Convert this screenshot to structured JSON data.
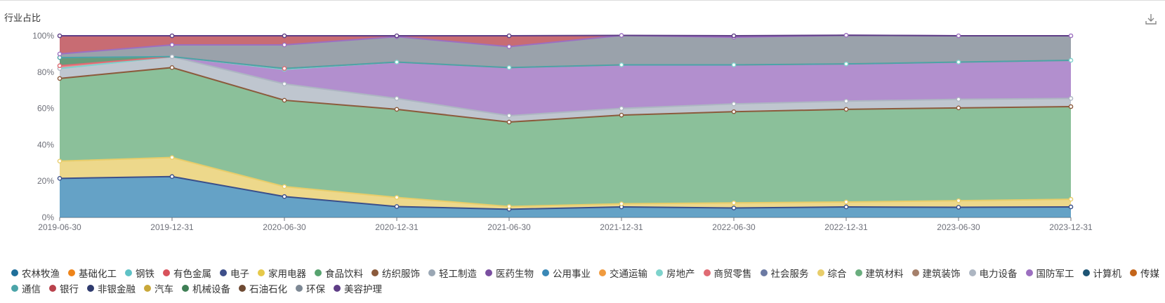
{
  "title": "行业占比",
  "toolbar": {
    "download_icon": "download-icon"
  },
  "chart_data": {
    "type": "area",
    "stacked": true,
    "normalized_percent": true,
    "x": [
      "2019-06-30",
      "2019-12-31",
      "2020-06-30",
      "2020-12-31",
      "2021-06-30",
      "2021-12-31",
      "2022-06-30",
      "2022-12-31",
      "2023-06-30",
      "2023-12-31"
    ],
    "y_ticks": [
      "0%",
      "20%",
      "40%",
      "60%",
      "80%",
      "100%"
    ],
    "ylim": [
      0,
      100
    ],
    "grid": false,
    "legend_position": "bottom",
    "series": [
      {
        "name": "农林牧渔",
        "color": "#1f6f9a",
        "values": [
          0,
          0,
          0,
          0,
          0,
          0,
          0,
          0,
          0,
          0
        ]
      },
      {
        "name": "基础化工",
        "color": "#ee8419",
        "values": [
          0,
          0,
          0,
          0,
          0,
          0,
          0,
          0,
          0,
          0
        ]
      },
      {
        "name": "钢铁",
        "color": "#5fc2c6",
        "values": [
          0,
          0,
          0,
          0,
          0,
          0,
          0,
          0,
          0,
          0
        ]
      },
      {
        "name": "有色金属",
        "color": "#d8525b",
        "values": [
          0,
          0,
          0,
          0,
          0,
          0,
          0,
          0,
          0,
          0
        ]
      },
      {
        "name": "电子",
        "color": "#3e4f8a",
        "values": [
          0,
          0,
          0,
          0,
          0,
          0,
          0,
          0,
          0,
          0
        ]
      },
      {
        "name": "家用电器",
        "color": "#e6c94a",
        "values": [
          0,
          0,
          0,
          0,
          0,
          0,
          0,
          0,
          0,
          0
        ]
      },
      {
        "name": "食品饮料",
        "color": "#57a36f",
        "values": [
          0,
          0,
          0,
          0,
          0,
          0,
          0,
          0,
          0,
          0
        ]
      },
      {
        "name": "纺织服饰",
        "color": "#8b5a3c",
        "values": [
          0,
          0,
          0,
          0,
          0,
          0,
          0,
          0,
          0,
          0
        ]
      },
      {
        "name": "轻工制造",
        "color": "#9aa7b4",
        "values": [
          0,
          0,
          0,
          0,
          0,
          0,
          0,
          0,
          0,
          0
        ]
      },
      {
        "name": "医药生物",
        "color": "#7a4fa0",
        "values": [
          0,
          0,
          0,
          0,
          0,
          0,
          0,
          0,
          0,
          0
        ]
      },
      {
        "name": "公用事业",
        "color": "#3a88b6",
        "values": [
          21.5,
          22.5,
          11.5,
          6,
          4.5,
          5.8,
          5.2,
          5.8,
          5.6,
          5.8
        ]
      },
      {
        "name": "交通运输",
        "color": "#f09b3f",
        "values": [
          0,
          0,
          0,
          0,
          0,
          0,
          0,
          0,
          0,
          0
        ]
      },
      {
        "name": "房地产",
        "color": "#7ed3cc",
        "values": [
          0,
          0,
          0,
          0,
          0,
          0,
          0,
          0,
          0,
          0
        ]
      },
      {
        "name": "商贸零售",
        "color": "#e06b73",
        "values": [
          0,
          0,
          0,
          0,
          0,
          0,
          0,
          0,
          0,
          0
        ]
      },
      {
        "name": "社会服务",
        "color": "#6b7aa3",
        "values": [
          0,
          0,
          0,
          0,
          0,
          0,
          0,
          0,
          0,
          0
        ]
      },
      {
        "name": "综合",
        "color": "#e8cd6a",
        "values": [
          9.5,
          10.5,
          5.5,
          5,
          1.5,
          1.7,
          2.8,
          2.7,
          3.6,
          4.2
        ]
      },
      {
        "name": "建筑材料",
        "color": "#6aae7e",
        "values": [
          45.5,
          49.5,
          47.5,
          48.5,
          46.5,
          48.8,
          50.2,
          51,
          51.1,
          51
        ]
      },
      {
        "name": "建筑装饰",
        "color": "#a5806b",
        "values": [
          0,
          0,
          0,
          0,
          0,
          0,
          0,
          0,
          0,
          0
        ]
      },
      {
        "name": "电力设备",
        "color": "#adb6c2",
        "values": [
          5.5,
          6,
          9,
          6,
          3.5,
          3.7,
          4.3,
          4.5,
          4.7,
          4.5
        ]
      },
      {
        "name": "国防军工",
        "color": "#9c6fc0",
        "values": [
          0,
          0,
          8,
          20,
          26.5,
          24,
          21.5,
          20.5,
          20.5,
          21
        ]
      },
      {
        "name": "计算机",
        "color": "#1d5474",
        "values": [
          0,
          0,
          0,
          0,
          0,
          0,
          0,
          0,
          0,
          0
        ]
      },
      {
        "name": "传媒",
        "color": "#c4651a",
        "values": [
          0,
          0,
          0,
          0,
          0,
          0,
          0,
          0,
          0,
          0
        ]
      },
      {
        "name": "通信",
        "color": "#4ba4a8",
        "values": [
          0,
          0,
          0,
          0,
          0,
          0,
          0,
          0,
          0,
          0
        ]
      },
      {
        "name": "银行",
        "color": "#b9424c",
        "values": [
          1.5,
          0,
          0.5,
          0,
          0,
          0,
          0,
          0,
          0,
          0
        ]
      },
      {
        "name": "非银金融",
        "color": "#2f3b6e",
        "values": [
          0,
          0,
          0,
          0,
          0,
          0,
          0,
          0,
          0,
          0
        ]
      },
      {
        "name": "汽车",
        "color": "#c9a83a",
        "values": [
          0,
          0,
          0,
          0,
          0,
          0,
          0,
          0,
          0,
          0
        ]
      },
      {
        "name": "机械设备",
        "color": "#3f7f55",
        "values": [
          4.5,
          0,
          0,
          0,
          0,
          0,
          0,
          0,
          0,
          0
        ]
      },
      {
        "name": "石油石化",
        "color": "#6e4a33",
        "values": [
          0,
          0,
          0,
          0,
          0,
          0,
          0,
          0,
          0,
          0
        ]
      },
      {
        "name": "环保",
        "color": "#7d8894",
        "values": [
          2,
          6.5,
          13,
          14,
          11.5,
          16.2,
          15.2,
          15.8,
          14.5,
          13.5
        ]
      },
      {
        "name": "美容护理",
        "color": "#5e3d86",
        "values": [
          10,
          5,
          5,
          0.5,
          6,
          0,
          0.8,
          0,
          0,
          0
        ]
      }
    ],
    "render_order": [
      "公用事业",
      "综合",
      "建筑材料",
      "电力设备",
      "国防军工",
      "银行",
      "机械设备",
      "环保",
      "美容护理"
    ],
    "render_colors": {
      "公用事业": {
        "fill": "#3a88b6",
        "line": "#3a4f8a"
      },
      "综合": {
        "fill": "#e8cd6a",
        "line": "#e8cd6a"
      },
      "建筑材料": {
        "fill": "#6aae7e",
        "line": "#8b5a3c"
      },
      "电力设备": {
        "fill": "#adb6c2",
        "line": "#adb6c2"
      },
      "国防军工": {
        "fill": "#9c6fc0",
        "line": "#7ed3cc"
      },
      "银行": {
        "fill": "#e06b73",
        "line": "#e06b73"
      },
      "机械设备": {
        "fill": "#3f7f55",
        "line": "#4ba4a8"
      },
      "环保": {
        "fill": "#7d8894",
        "line": "#9c6fc0"
      },
      "美容护理": {
        "fill": "#b9424c",
        "line": "#5e3d86"
      }
    }
  },
  "legend_rows": [
    [
      "农林牧渔",
      "基础化工",
      "钢铁",
      "有色金属",
      "电子",
      "家用电器",
      "食品饮料",
      "纺织服饰",
      "轻工制造",
      "医药生物",
      "公用事业",
      "交通运输",
      "房地产",
      "商贸零售",
      "社会服务",
      "综合",
      "建筑材料",
      "建筑装饰",
      "电力设备",
      "国防军工",
      "计算机",
      "传媒"
    ],
    [
      "通信",
      "银行",
      "非银金融",
      "汽车",
      "机械设备",
      "石油石化",
      "环保",
      "美容护理"
    ]
  ]
}
